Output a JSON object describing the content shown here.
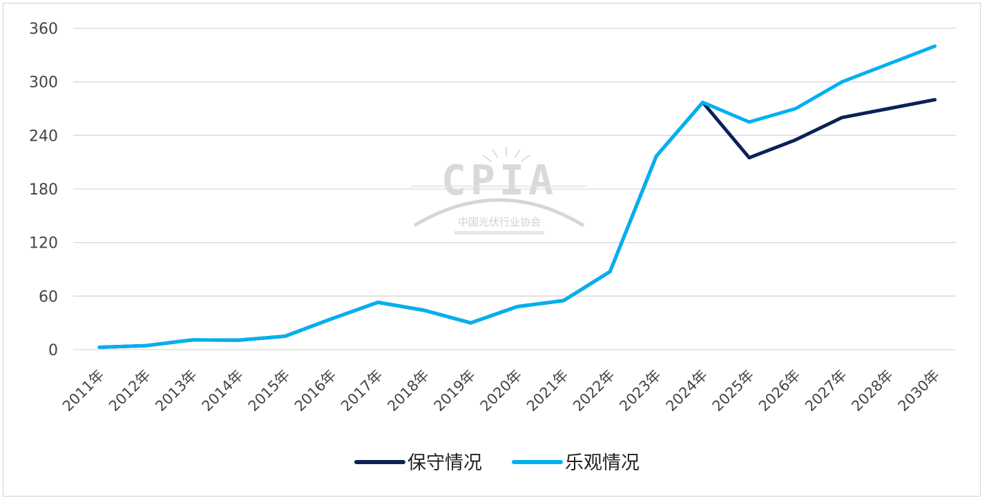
{
  "watermark": {
    "logo_text": "CPIA",
    "subtitle": "中国光伏行业协会"
  },
  "chart_data": {
    "type": "line",
    "title": "",
    "xlabel": "",
    "ylabel": "",
    "ylim": [
      0,
      360
    ],
    "yticks": [
      0,
      60,
      120,
      180,
      240,
      300,
      360
    ],
    "grid": "horizontal",
    "legend_position": "bottom",
    "categories": [
      "2011年",
      "2012年",
      "2013年",
      "2014年",
      "2015年",
      "2016年",
      "2017年",
      "2018年",
      "2019年",
      "2020年",
      "2021年",
      "2022年",
      "2023年",
      "2024年",
      "2025年",
      "2026年",
      "2027年",
      "2028年",
      "2030年"
    ],
    "series": [
      {
        "name": "保守情况",
        "color": "#0b2257",
        "values": [
          2.7,
          4.5,
          10.9,
          10.6,
          15.1,
          34.5,
          53,
          44,
          30,
          48.2,
          54.9,
          87.4,
          216.9,
          277,
          215,
          235,
          260,
          270,
          280
        ]
      },
      {
        "name": "乐观情况",
        "color": "#00b0f0",
        "values": [
          2.7,
          4.5,
          10.9,
          10.6,
          15.1,
          34.5,
          53,
          44,
          30,
          48.2,
          54.9,
          87.4,
          216.9,
          277,
          255,
          270,
          300,
          320,
          340
        ]
      }
    ]
  }
}
